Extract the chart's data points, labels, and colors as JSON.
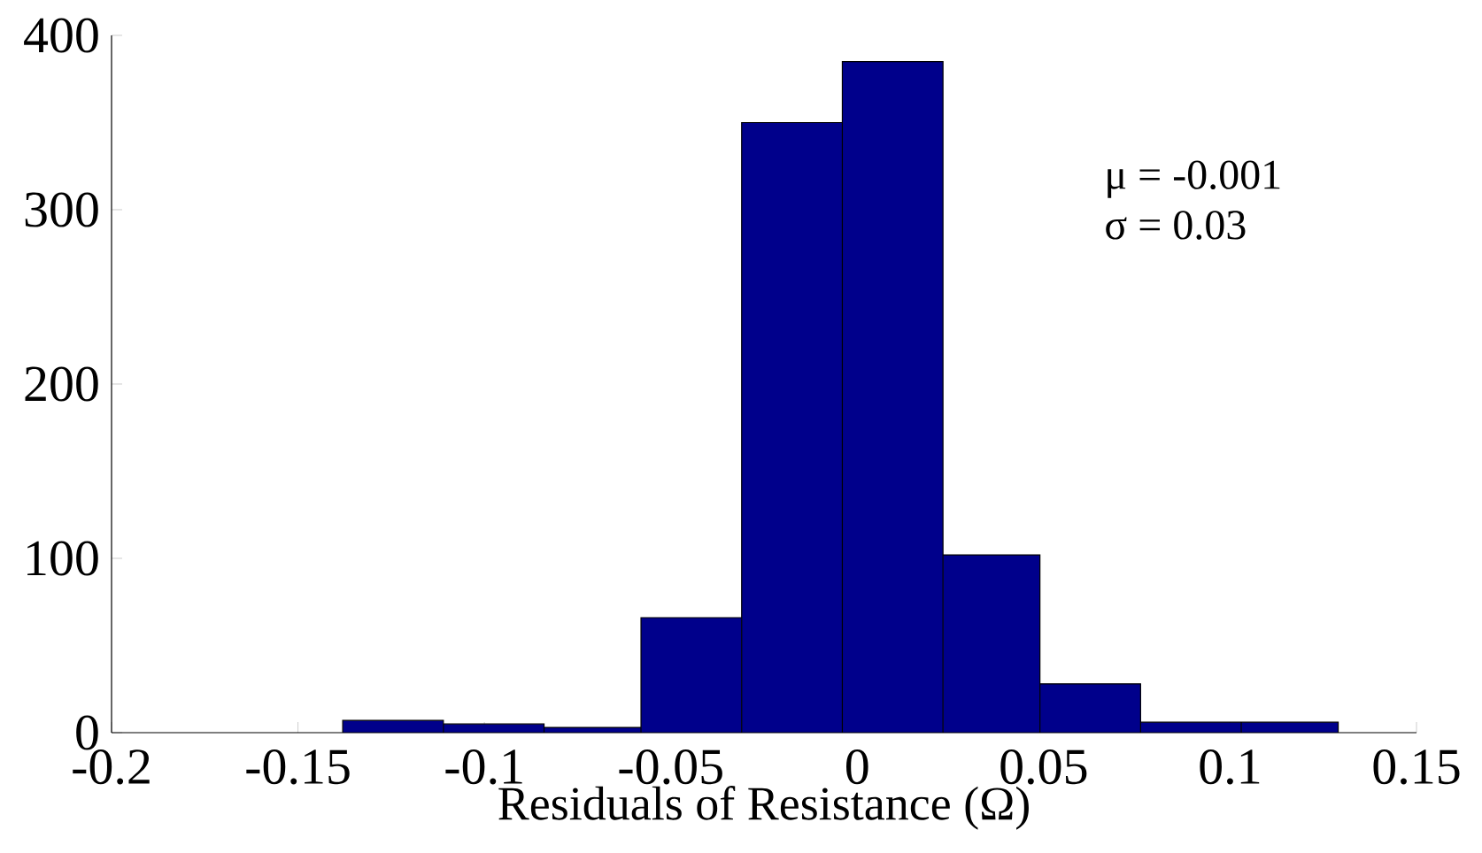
{
  "chart_data": {
    "type": "histogram",
    "xlabel": "Residuals of Resistance (Ω)",
    "bins": [
      -0.138,
      -0.111,
      -0.084,
      -0.058,
      -0.031,
      -0.004,
      0.023,
      0.049,
      0.076,
      0.103,
      0.129
    ],
    "values": [
      7,
      5,
      3,
      66,
      350,
      385,
      102,
      28,
      6,
      6
    ],
    "color": "#00008b",
    "xlim": [
      -0.2,
      0.15
    ],
    "xticks": [
      -0.2,
      -0.15,
      -0.1,
      -0.05,
      0,
      0.05,
      0.1,
      0.15
    ],
    "ylim": [
      0,
      400
    ],
    "yticks": [
      0,
      100,
      200,
      300,
      400
    ],
    "annotations": [
      "μ = -0.001",
      "σ = 0.03"
    ]
  }
}
